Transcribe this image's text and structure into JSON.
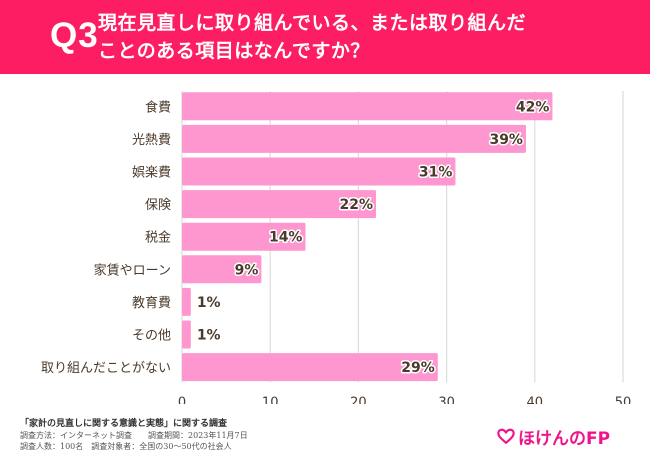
{
  "header": {
    "question_number": "Q3",
    "title_line1": "現在見直しに取り組んでいる、または取り組んだ",
    "title_line2": "ことのある項目はなんですか？"
  },
  "chart_data": {
    "type": "bar",
    "orientation": "horizontal",
    "title": "現在見直しに取り組んでいる、または取り組んだことのある項目はなんですか？",
    "xlabel": "",
    "ylabel": "",
    "categories": [
      "食費",
      "光熱費",
      "娯楽費",
      "保険",
      "税金",
      "家賃やローン",
      "教育費",
      "その他",
      "取り組んだことがない"
    ],
    "values": [
      42,
      39,
      31,
      22,
      14,
      9,
      1,
      1,
      29
    ],
    "value_labels": [
      "42%",
      "39%",
      "31%",
      "22%",
      "14%",
      "9%",
      "1%",
      "1%",
      "29%"
    ],
    "xlim": [
      0,
      50
    ],
    "xticks": [
      0,
      10,
      20,
      30,
      40,
      50
    ],
    "grid": true,
    "bar_color": "#fe96cf",
    "unit": "%"
  },
  "footer": {
    "survey_title": "「家計の見直しに関する意識と実態」に関する調査",
    "method_line": "調査方法：インターネット調査　　調査期間：2023年11月7日",
    "people_line": "調査人数：100名　調査対象者：全国の30〜50代の社会人"
  },
  "brand": {
    "logo_icon": "heart-outline-icon",
    "logo_text": "ほけんのFP",
    "color": "#f0148a"
  },
  "colors": {
    "header_bg": "#fd1d62",
    "text": "#4a3a2a",
    "grid": "#dddddd"
  }
}
